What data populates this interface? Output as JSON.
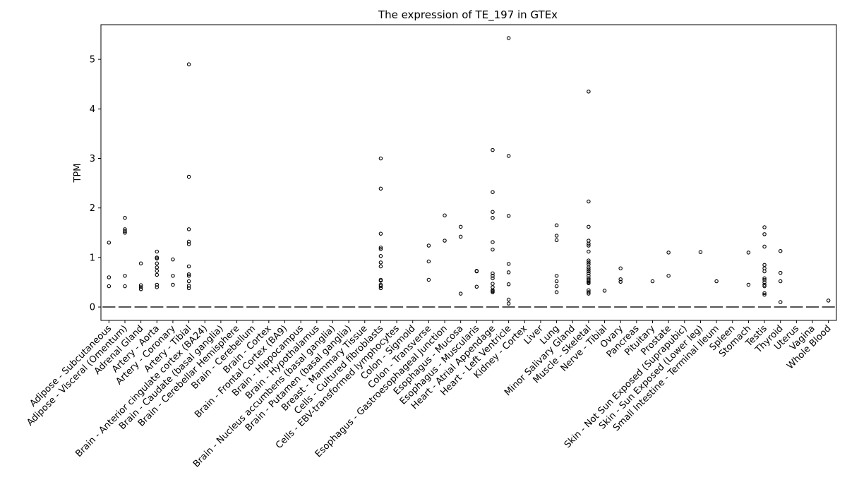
{
  "chart_data": {
    "type": "box",
    "title": "The expression of TE_197 in GTEx",
    "xlabel": "",
    "ylabel": "TPM",
    "ylim": [
      -0.27,
      5.7
    ],
    "yticks": [
      0,
      1,
      2,
      3,
      4,
      5
    ],
    "grid": false,
    "categories": [
      "Adipose - Subcutaneous",
      "Adipose - Visceral (Omentum)",
      "Adrenal Gland",
      "Artery - Aorta",
      "Artery - Coronary",
      "Artery - Tibial",
      "Brain - Anterior cingulate cortex (BA24)",
      "Brain - Caudate (basal ganglia)",
      "Brain - Cerebellar Hemisphere",
      "Brain - Cerebellum",
      "Brain - Cortex",
      "Brain - Frontal Cortex (BA9)",
      "Brain - Hippocampus",
      "Brain - Hypothalamus",
      "Brain - Nucleus accumbens (basal ganglia)",
      "Brain - Putamen (basal ganglia)",
      "Breast - Mammary Tissue",
      "Cells - Cultured fibroblasts",
      "Cells - EBV-transformed lymphocytes",
      "Colon - Sigmoid",
      "Colon - Transverse",
      "Esophagus - Gastroesophageal Junction",
      "Esophagus - Mucosa",
      "Esophagus - Muscularis",
      "Heart - Atrial Appendage",
      "Heart - Left Ventricle",
      "Kidney - Cortex",
      "Liver",
      "Lung",
      "Minor Salivary Gland",
      "Muscle - Skeletal",
      "Nerve - Tibial",
      "Ovary",
      "Pancreas",
      "Pituitary",
      "Prostate",
      "Skin - Not Sun Exposed (Suprapubic)",
      "Skin - Sun Exposed (Lower leg)",
      "Small Intestine - Terminal Ileum",
      "Spleen",
      "Stomach",
      "Testis",
      "Thyroid",
      "Uterus",
      "Vagina",
      "Whole Blood"
    ],
    "median": [
      0,
      0,
      0,
      0,
      0,
      0,
      0,
      0,
      0,
      0,
      0,
      0,
      0,
      0,
      0,
      0,
      0,
      0,
      0,
      0,
      0,
      0,
      0,
      0,
      0,
      0,
      0,
      0,
      0,
      0,
      0,
      0,
      0,
      0,
      0,
      0,
      0,
      0,
      0,
      0,
      0,
      0,
      0,
      0,
      0,
      0
    ],
    "outliers": [
      [
        1.3,
        0.6,
        0.42
      ],
      [
        1.8,
        1.57,
        1.53,
        1.5,
        0.63,
        0.42
      ],
      [
        0.88,
        0.44,
        0.4,
        0.36
      ],
      [
        1.12,
        1.0,
        0.98,
        0.88,
        0.8,
        0.73,
        0.65,
        0.45,
        0.4
      ],
      [
        0.96,
        0.63,
        0.45
      ],
      [
        4.9,
        2.63,
        1.57,
        1.32,
        1.27,
        0.82,
        0.66,
        0.63,
        0.52,
        0.43,
        0.38
      ],
      [],
      [],
      [],
      [],
      [],
      [],
      [],
      [],
      [],
      [],
      [],
      [
        3.0,
        2.39,
        1.48,
        1.2,
        1.17,
        1.03,
        0.9,
        0.82,
        0.55,
        0.53,
        0.45,
        0.42,
        0.38
      ],
      [],
      [],
      [
        1.24,
        0.92,
        0.55
      ],
      [
        1.85,
        1.34
      ],
      [
        1.62,
        1.42,
        0.27
      ],
      [
        0.73,
        0.72,
        0.41
      ],
      [
        3.17,
        2.32,
        1.92,
        1.8,
        1.31,
        1.16,
        0.68,
        0.63,
        0.58,
        0.47,
        0.4,
        0.34,
        0.32,
        0.3
      ],
      [
        5.43,
        3.05,
        1.84,
        0.87,
        0.7,
        0.46,
        0.15,
        0.07
      ],
      [],
      [],
      [
        1.65,
        1.44,
        1.35,
        0.63,
        0.52,
        0.42,
        0.3
      ],
      [],
      [
        4.35,
        2.13,
        1.62,
        1.34,
        1.28,
        1.24,
        1.12,
        0.94,
        0.9,
        0.86,
        0.8,
        0.76,
        0.72,
        0.68,
        0.63,
        0.58,
        0.55,
        0.52,
        0.5,
        0.48,
        0.34,
        0.3,
        0.27
      ],
      [
        0.33
      ],
      [
        0.78,
        0.56,
        0.51
      ],
      [],
      [
        0.52
      ],
      [
        1.1,
        0.63
      ],
      [],
      [
        1.11
      ],
      [
        0.52
      ],
      [],
      [
        1.1,
        0.45
      ],
      [
        1.61,
        1.47,
        1.22,
        0.85,
        0.78,
        0.72,
        0.58,
        0.55,
        0.5,
        0.45,
        0.42,
        0.28,
        0.25
      ],
      [
        1.13,
        0.69,
        0.52,
        0.1
      ],
      [],
      [],
      [
        0.13
      ]
    ]
  }
}
